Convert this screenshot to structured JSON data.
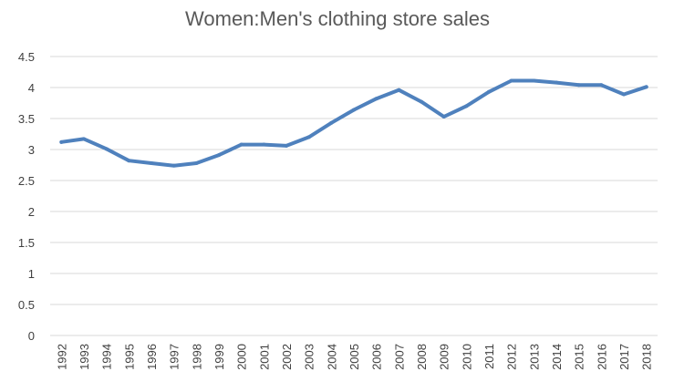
{
  "chart_data": {
    "type": "line",
    "title": "Women:Men's clothing store sales",
    "xlabel": "",
    "ylabel": "",
    "x": [
      "1992",
      "1993",
      "1994",
      "1995",
      "1996",
      "1997",
      "1998",
      "1999",
      "2000",
      "2001",
      "2002",
      "2003",
      "2004",
      "2005",
      "2006",
      "2007",
      "2008",
      "2009",
      "2010",
      "2011",
      "2012",
      "2013",
      "2014",
      "2015",
      "2016",
      "2017",
      "2018"
    ],
    "series": [
      {
        "values": [
          3.12,
          3.17,
          3.01,
          2.82,
          2.78,
          2.74,
          2.78,
          2.91,
          3.08,
          3.08,
          3.06,
          3.2,
          3.43,
          3.64,
          3.82,
          3.96,
          3.77,
          3.53,
          3.7,
          3.93,
          4.11,
          4.11,
          4.08,
          4.04,
          4.04,
          3.89,
          4.01
        ],
        "color": "#4f81bd"
      }
    ],
    "ylim": [
      0,
      4.5
    ],
    "yticks": [
      "0",
      "0.5",
      "1",
      "1.5",
      "2",
      "2.5",
      "3",
      "3.5",
      "4",
      "4.5"
    ],
    "grid": true,
    "legend": "none"
  }
}
